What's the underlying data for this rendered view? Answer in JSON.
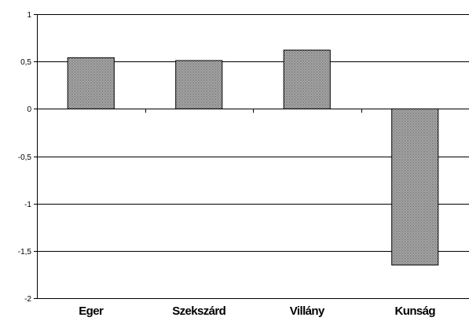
{
  "chart_data": {
    "type": "bar",
    "title": "",
    "xlabel": "",
    "ylabel": "",
    "categories": [
      "Eger",
      "Szekszárd",
      "Villány",
      "Kunság"
    ],
    "values": [
      0.54,
      0.51,
      0.62,
      -1.65
    ],
    "ylim": [
      -2,
      1
    ],
    "yticks": [
      1,
      0.5,
      0,
      -0.5,
      -1,
      -1.5,
      -2
    ],
    "ytick_labels": [
      "1",
      "0,5",
      "0",
      "-0,5",
      "-1",
      "-1,5",
      "-2"
    ],
    "grid": true,
    "legend": "none",
    "bar_pattern": "dotted-gray"
  }
}
